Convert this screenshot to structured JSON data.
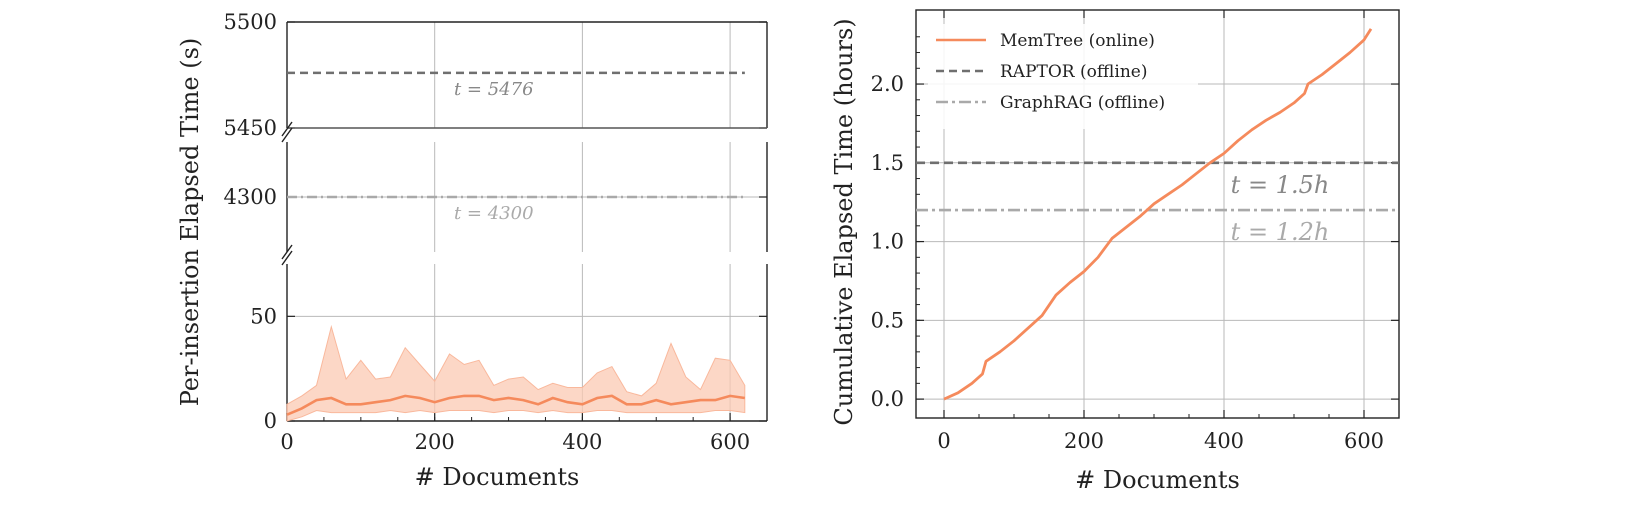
{
  "chart_data": [
    {
      "type": "line",
      "ylabel": "Per-insertion Elapsed Time (s)",
      "xlabel": "# Documents",
      "xlim": [
        0,
        650
      ],
      "xticks": [
        0,
        200,
        400,
        600
      ],
      "broken_axis": true,
      "grid": true,
      "panels": [
        {
          "ylim": [
            5450,
            5500
          ],
          "yticks": [
            5450,
            5500
          ]
        },
        {
          "ylim": [
            4250,
            4350
          ],
          "yticks": [
            4300
          ]
        },
        {
          "ylim": [
            0,
            75
          ],
          "yticks": [
            0,
            50
          ]
        }
      ],
      "series": [
        {
          "name": "MemTree (online)",
          "color": "#f58a5c",
          "x": [
            0,
            20,
            40,
            60,
            80,
            100,
            120,
            140,
            160,
            180,
            200,
            220,
            240,
            260,
            280,
            300,
            320,
            340,
            360,
            380,
            400,
            420,
            440,
            460,
            480,
            500,
            520,
            540,
            560,
            580,
            600,
            620
          ],
          "values": [
            3,
            6,
            10,
            11,
            8,
            8,
            9,
            10,
            12,
            11,
            9,
            11,
            12,
            12,
            10,
            11,
            10,
            8,
            11,
            9,
            8,
            11,
            12,
            8,
            8,
            10,
            8,
            9,
            10,
            10,
            12,
            11
          ],
          "band_low": [
            0,
            2,
            5,
            4,
            4,
            4,
            4,
            5,
            4,
            5,
            4,
            5,
            5,
            5,
            4,
            5,
            5,
            4,
            5,
            4,
            4,
            5,
            5,
            4,
            4,
            4,
            4,
            4,
            4,
            5,
            5,
            4
          ],
          "band_high": [
            8,
            12,
            17,
            45,
            20,
            29,
            20,
            21,
            35,
            27,
            19,
            32,
            27,
            29,
            17,
            20,
            21,
            15,
            18,
            16,
            16,
            23,
            26,
            14,
            12,
            18,
            37,
            21,
            15,
            30,
            29,
            17
          ]
        },
        {
          "name": "RAPTOR (offline)",
          "color": "#6f6f6f",
          "constant": 5476,
          "annotation": "t = 5476"
        },
        {
          "name": "GraphRAG (offline)",
          "color": "#a9a9a9",
          "constant": 4300,
          "annotation": "t = 4300"
        }
      ]
    },
    {
      "type": "line",
      "ylabel": "Cumulative Elapsed Time (hours)",
      "xlabel": "# Documents",
      "xlim": [
        -40,
        650
      ],
      "ylim": [
        -0.12,
        2.47
      ],
      "xticks": [
        0,
        200,
        400,
        600
      ],
      "yticks": [
        0.0,
        0.5,
        1.0,
        1.5,
        2.0
      ],
      "ytick_labels": [
        "0.0",
        "0.5",
        "1.0",
        "1.5",
        "2.0"
      ],
      "grid": true,
      "legend": "top-left",
      "series": [
        {
          "name": "MemTree (online)",
          "color": "#f58a5c",
          "x": [
            0,
            20,
            40,
            55,
            60,
            80,
            100,
            120,
            140,
            160,
            180,
            200,
            220,
            240,
            260,
            280,
            300,
            320,
            340,
            360,
            380,
            400,
            420,
            440,
            460,
            480,
            500,
            515,
            520,
            540,
            560,
            580,
            600,
            610
          ],
          "values": [
            0.0,
            0.04,
            0.1,
            0.16,
            0.24,
            0.3,
            0.37,
            0.45,
            0.53,
            0.66,
            0.74,
            0.81,
            0.9,
            1.02,
            1.09,
            1.16,
            1.24,
            1.3,
            1.36,
            1.43,
            1.5,
            1.56,
            1.64,
            1.71,
            1.77,
            1.82,
            1.88,
            1.94,
            2.0,
            2.06,
            2.13,
            2.2,
            2.28,
            2.35
          ]
        },
        {
          "name": "RAPTOR (offline)",
          "color": "#6f6f6f",
          "constant": 1.5,
          "annotation": "t = 1.5h"
        },
        {
          "name": "GraphRAG (offline)",
          "color": "#a9a9a9",
          "constant": 1.2,
          "annotation": "t = 1.2h"
        }
      ]
    }
  ]
}
